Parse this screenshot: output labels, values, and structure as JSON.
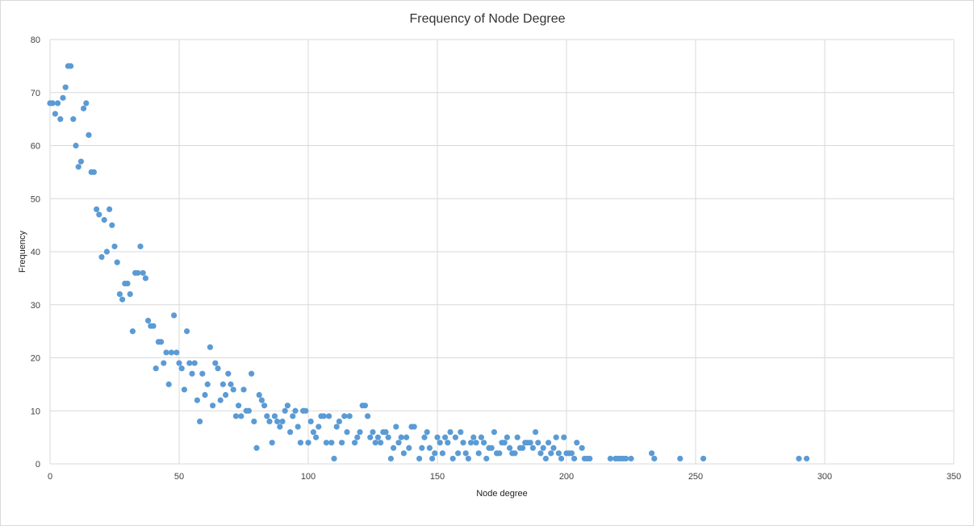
{
  "chart_data": {
    "type": "scatter",
    "title": "Frequency of Node Degree",
    "xlabel": "Node degree",
    "ylabel": "Frequency",
    "xlim": [
      0,
      350
    ],
    "ylim": [
      0,
      80
    ],
    "xticks": [
      0,
      50,
      100,
      150,
      200,
      250,
      300,
      350
    ],
    "yticks": [
      0,
      10,
      20,
      30,
      40,
      50,
      60,
      70,
      80
    ],
    "grid": true,
    "legend": "none",
    "marker_color": "#5b9bd5",
    "points": [
      [
        0,
        68
      ],
      [
        1,
        68
      ],
      [
        2,
        66
      ],
      [
        3,
        68
      ],
      [
        4,
        65
      ],
      [
        5,
        69
      ],
      [
        6,
        71
      ],
      [
        7,
        75
      ],
      [
        8,
        75
      ],
      [
        9,
        65
      ],
      [
        10,
        60
      ],
      [
        11,
        56
      ],
      [
        12,
        57
      ],
      [
        13,
        67
      ],
      [
        14,
        68
      ],
      [
        15,
        62
      ],
      [
        16,
        55
      ],
      [
        17,
        55
      ],
      [
        18,
        48
      ],
      [
        19,
        47
      ],
      [
        20,
        39
      ],
      [
        21,
        46
      ],
      [
        22,
        40
      ],
      [
        23,
        48
      ],
      [
        24,
        45
      ],
      [
        25,
        41
      ],
      [
        26,
        38
      ],
      [
        27,
        32
      ],
      [
        28,
        31
      ],
      [
        29,
        34
      ],
      [
        30,
        34
      ],
      [
        31,
        32
      ],
      [
        32,
        25
      ],
      [
        33,
        36
      ],
      [
        34,
        36
      ],
      [
        35,
        41
      ],
      [
        36,
        36
      ],
      [
        37,
        35
      ],
      [
        38,
        27
      ],
      [
        39,
        26
      ],
      [
        40,
        26
      ],
      [
        41,
        18
      ],
      [
        42,
        23
      ],
      [
        43,
        23
      ],
      [
        44,
        19
      ],
      [
        45,
        21
      ],
      [
        46,
        15
      ],
      [
        47,
        21
      ],
      [
        48,
        28
      ],
      [
        49,
        21
      ],
      [
        50,
        19
      ],
      [
        51,
        18
      ],
      [
        52,
        14
      ],
      [
        53,
        25
      ],
      [
        54,
        19
      ],
      [
        55,
        17
      ],
      [
        56,
        19
      ],
      [
        57,
        12
      ],
      [
        58,
        8
      ],
      [
        59,
        17
      ],
      [
        60,
        13
      ],
      [
        61,
        15
      ],
      [
        62,
        22
      ],
      [
        63,
        11
      ],
      [
        64,
        19
      ],
      [
        65,
        18
      ],
      [
        66,
        12
      ],
      [
        67,
        15
      ],
      [
        68,
        13
      ],
      [
        69,
        17
      ],
      [
        70,
        15
      ],
      [
        71,
        14
      ],
      [
        72,
        9
      ],
      [
        73,
        11
      ],
      [
        74,
        9
      ],
      [
        75,
        14
      ],
      [
        76,
        10
      ],
      [
        77,
        10
      ],
      [
        78,
        17
      ],
      [
        79,
        8
      ],
      [
        80,
        3
      ],
      [
        81,
        13
      ],
      [
        82,
        12
      ],
      [
        83,
        11
      ],
      [
        84,
        9
      ],
      [
        85,
        8
      ],
      [
        86,
        4
      ],
      [
        87,
        9
      ],
      [
        88,
        8
      ],
      [
        89,
        7
      ],
      [
        90,
        8
      ],
      [
        91,
        10
      ],
      [
        92,
        11
      ],
      [
        93,
        6
      ],
      [
        94,
        9
      ],
      [
        95,
        10
      ],
      [
        96,
        7
      ],
      [
        97,
        4
      ],
      [
        98,
        10
      ],
      [
        99,
        10
      ],
      [
        100,
        4
      ],
      [
        101,
        8
      ],
      [
        102,
        6
      ],
      [
        103,
        5
      ],
      [
        104,
        7
      ],
      [
        105,
        9
      ],
      [
        106,
        9
      ],
      [
        107,
        4
      ],
      [
        108,
        9
      ],
      [
        109,
        4
      ],
      [
        110,
        1
      ],
      [
        111,
        7
      ],
      [
        112,
        8
      ],
      [
        113,
        4
      ],
      [
        114,
        9
      ],
      [
        115,
        6
      ],
      [
        116,
        9
      ],
      [
        118,
        4
      ],
      [
        119,
        5
      ],
      [
        120,
        6
      ],
      [
        121,
        11
      ],
      [
        122,
        11
      ],
      [
        123,
        9
      ],
      [
        124,
        5
      ],
      [
        125,
        6
      ],
      [
        126,
        4
      ],
      [
        127,
        5
      ],
      [
        128,
        4
      ],
      [
        129,
        6
      ],
      [
        130,
        6
      ],
      [
        131,
        5
      ],
      [
        132,
        1
      ],
      [
        133,
        3
      ],
      [
        134,
        7
      ],
      [
        135,
        4
      ],
      [
        136,
        5
      ],
      [
        137,
        2
      ],
      [
        138,
        5
      ],
      [
        139,
        3
      ],
      [
        140,
        7
      ],
      [
        141,
        7
      ],
      [
        143,
        1
      ],
      [
        144,
        3
      ],
      [
        145,
        5
      ],
      [
        146,
        6
      ],
      [
        147,
        3
      ],
      [
        148,
        1
      ],
      [
        149,
        2
      ],
      [
        150,
        5
      ],
      [
        151,
        4
      ],
      [
        152,
        2
      ],
      [
        153,
        5
      ],
      [
        154,
        4
      ],
      [
        155,
        6
      ],
      [
        156,
        1
      ],
      [
        157,
        5
      ],
      [
        158,
        2
      ],
      [
        159,
        6
      ],
      [
        160,
        4
      ],
      [
        161,
        2
      ],
      [
        162,
        1
      ],
      [
        163,
        4
      ],
      [
        164,
        5
      ],
      [
        165,
        4
      ],
      [
        166,
        2
      ],
      [
        167,
        5
      ],
      [
        168,
        4
      ],
      [
        169,
        1
      ],
      [
        170,
        3
      ],
      [
        171,
        3
      ],
      [
        172,
        6
      ],
      [
        173,
        2
      ],
      [
        174,
        2
      ],
      [
        175,
        4
      ],
      [
        176,
        4
      ],
      [
        177,
        5
      ],
      [
        178,
        3
      ],
      [
        179,
        2
      ],
      [
        180,
        2
      ],
      [
        181,
        5
      ],
      [
        182,
        3
      ],
      [
        183,
        3
      ],
      [
        184,
        4
      ],
      [
        185,
        4
      ],
      [
        186,
        4
      ],
      [
        187,
        3
      ],
      [
        188,
        6
      ],
      [
        189,
        4
      ],
      [
        190,
        2
      ],
      [
        191,
        3
      ],
      [
        192,
        1
      ],
      [
        193,
        4
      ],
      [
        194,
        2
      ],
      [
        195,
        3
      ],
      [
        196,
        5
      ],
      [
        197,
        2
      ],
      [
        198,
        1
      ],
      [
        199,
        5
      ],
      [
        200,
        2
      ],
      [
        201,
        2
      ],
      [
        202,
        2
      ],
      [
        203,
        1
      ],
      [
        204,
        4
      ],
      [
        206,
        3
      ],
      [
        207,
        1
      ],
      [
        208,
        1
      ],
      [
        209,
        1
      ],
      [
        217,
        1
      ],
      [
        219,
        1
      ],
      [
        220,
        1
      ],
      [
        221,
        1
      ],
      [
        222,
        1
      ],
      [
        223,
        1
      ],
      [
        225,
        1
      ],
      [
        233,
        2
      ],
      [
        234,
        1
      ],
      [
        244,
        1
      ],
      [
        253,
        1
      ],
      [
        290,
        1
      ],
      [
        293,
        1
      ]
    ]
  }
}
